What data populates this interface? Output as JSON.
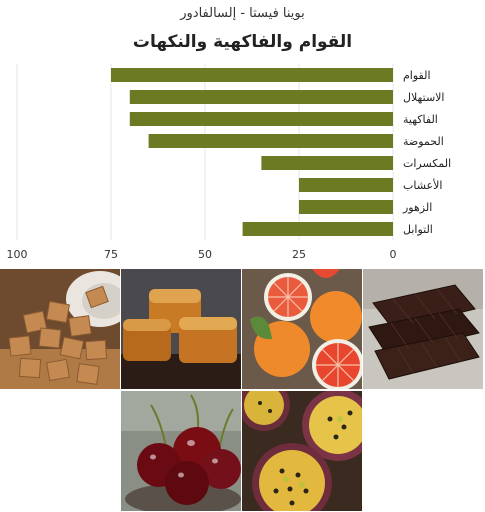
{
  "header": {
    "subtitle": "بوينا فيستا - إلسالفادور",
    "title": "القوام والفاكهية والنكهات"
  },
  "chart_data": {
    "type": "bar",
    "orientation": "horizontal",
    "x_direction": "right-to-left",
    "categories": [
      "القوام",
      "الاستهلال",
      "الفاكهية",
      "الحموضة",
      "المكسرات",
      "الأعشاب",
      "الزهور",
      "التوابل"
    ],
    "values": [
      75,
      70,
      70,
      65,
      35,
      25,
      25,
      40
    ],
    "xlim": [
      0,
      100
    ],
    "xticks": [
      100,
      75,
      50,
      25,
      0
    ],
    "grid": true,
    "bar_color": "#6b7a23"
  },
  "gallery": {
    "tiles": [
      {
        "name": "sugar-cubes-photo"
      },
      {
        "name": "caramel-photo"
      },
      {
        "name": "grapefruit-photo"
      },
      {
        "name": "dark-chocolate-photo"
      },
      {
        "name": "cherries-photo"
      },
      {
        "name": "passion-fruit-photo"
      }
    ]
  }
}
